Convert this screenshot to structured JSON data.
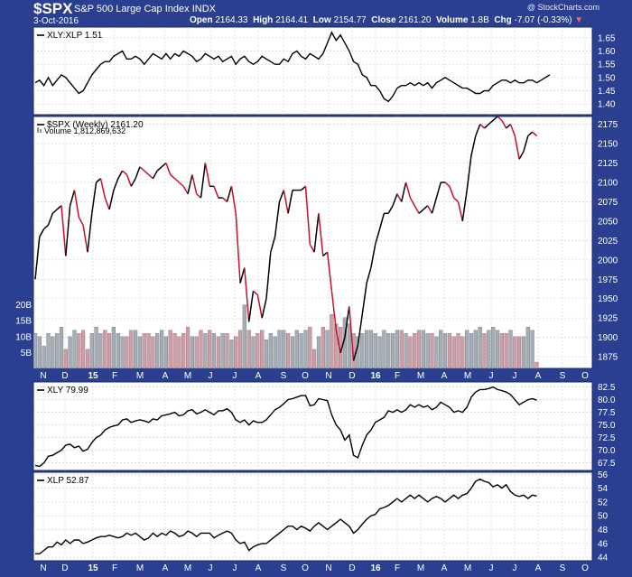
{
  "header": {
    "symbol": "$SPX",
    "name": "S&P 500 Large Cap Index",
    "exchange": "INDX",
    "date": "3-Oct-2016",
    "open_label": "Open",
    "open": "2164.33",
    "high_label": "High",
    "high": "2164.41",
    "low_label": "Low",
    "low": "2154.77",
    "close_label": "Close",
    "close": "2161.20",
    "volume_label": "Volume",
    "volume": "1.8B",
    "chg_label": "Chg",
    "chg": "-7.07 (-0.33%)",
    "watermark": "@ StockCharts.com"
  },
  "colors": {
    "up": "#000000",
    "down": "#c8102e",
    "frame": "#2a3f8f",
    "volume": "#9aa3ad"
  },
  "x_axis_labels": [
    "N",
    "D",
    "15",
    "F",
    "M",
    "A",
    "M",
    "J",
    "J",
    "A",
    "S",
    "O",
    "N",
    "D",
    "16",
    "F",
    "M",
    "A",
    "M",
    "J",
    "J",
    "A",
    "S",
    "O"
  ],
  "chart_data": [
    {
      "type": "line",
      "title": "XLY:XLP 1.51",
      "ylim": [
        1.36,
        1.69
      ],
      "yticks": [
        "1.40",
        "1.45",
        "1.50",
        "1.55",
        "1.60",
        "1.65"
      ],
      "values": [
        1.48,
        1.49,
        1.47,
        1.5,
        1.47,
        1.49,
        1.51,
        1.5,
        1.48,
        1.46,
        1.44,
        1.45,
        1.48,
        1.51,
        1.53,
        1.55,
        1.56,
        1.56,
        1.58,
        1.59,
        1.6,
        1.57,
        1.57,
        1.58,
        1.57,
        1.55,
        1.57,
        1.59,
        1.58,
        1.57,
        1.59,
        1.57,
        1.59,
        1.58,
        1.6,
        1.59,
        1.58,
        1.56,
        1.57,
        1.59,
        1.58,
        1.57,
        1.58,
        1.56,
        1.57,
        1.58,
        1.55,
        1.57,
        1.58,
        1.56,
        1.55,
        1.56,
        1.58,
        1.57,
        1.56,
        1.55,
        1.55,
        1.57,
        1.56,
        1.59,
        1.6,
        1.58,
        1.57,
        1.59,
        1.58,
        1.57,
        1.59,
        1.63,
        1.67,
        1.64,
        1.66,
        1.63,
        1.6,
        1.56,
        1.55,
        1.51,
        1.5,
        1.47,
        1.47,
        1.45,
        1.42,
        1.41,
        1.43,
        1.46,
        1.47,
        1.47,
        1.48,
        1.47,
        1.48,
        1.47,
        1.48,
        1.46,
        1.48,
        1.49,
        1.5,
        1.49,
        1.48,
        1.47,
        1.46,
        1.46,
        1.45,
        1.44,
        1.44,
        1.45,
        1.45,
        1.47,
        1.48,
        1.49,
        1.49,
        1.48,
        1.49,
        1.48,
        1.48,
        1.49,
        1.49,
        1.48,
        1.49,
        1.5,
        1.51
      ]
    },
    {
      "type": "line",
      "title": "$SPX (Weekly) 2161.20",
      "volume_label": "Volume 1,812,869,632",
      "ylim": [
        1860,
        2185
      ],
      "yticks": [
        "1875",
        "1900",
        "1925",
        "1950",
        "1975",
        "2000",
        "2025",
        "2050",
        "2075",
        "2100",
        "2125",
        "2150",
        "2175"
      ],
      "volume_ticks": [
        "5B",
        "10B",
        "15B",
        "20B"
      ],
      "volume_max": 25,
      "values": [
        1975,
        2030,
        2040,
        2045,
        2060,
        2065,
        2070,
        2005,
        2070,
        2090,
        2055,
        2045,
        2010,
        2060,
        2100,
        2105,
        2080,
        2065,
        2090,
        2105,
        2115,
        2110,
        2095,
        2105,
        2120,
        2115,
        2110,
        2105,
        2115,
        2120,
        2125,
        2110,
        2105,
        2100,
        2095,
        2085,
        2110,
        2085,
        2080,
        2125,
        2095,
        2095,
        2080,
        2080,
        2075,
        2095,
        2060,
        1970,
        1990,
        1920,
        1960,
        1955,
        1925,
        1950,
        2010,
        2030,
        2075,
        2090,
        2060,
        2090,
        2090,
        2090,
        2095,
        2020,
        2010,
        2060,
        2005,
        2010,
        1960,
        1910,
        1880,
        1900,
        1940,
        1870,
        1890,
        1930,
        1970,
        1990,
        2020,
        2040,
        2060,
        2060,
        2070,
        2085,
        2075,
        2100,
        2080,
        2070,
        2060,
        2065,
        2070,
        2060,
        2080,
        2100,
        2100,
        2095,
        2080,
        2075,
        2050,
        2090,
        2135,
        2160,
        2175,
        2170,
        2175,
        2180,
        2185,
        2180,
        2170,
        2175,
        2160,
        2130,
        2140,
        2160,
        2165,
        2160
      ],
      "volume": [
        11,
        10,
        7,
        11,
        10,
        11,
        13,
        6,
        10,
        12,
        11,
        12,
        6,
        11,
        13,
        11,
        12,
        11,
        13,
        11,
        10,
        10,
        12,
        12,
        10,
        11,
        11,
        10,
        11,
        12,
        10,
        12,
        11,
        10,
        11,
        13,
        10,
        10,
        12,
        11,
        12,
        11,
        10,
        11,
        11,
        9,
        10,
        12,
        20,
        12,
        10,
        11,
        12,
        9,
        11,
        10,
        12,
        12,
        11,
        10,
        12,
        11,
        12,
        13,
        6,
        10,
        13,
        12,
        17,
        14,
        13,
        16,
        14,
        11,
        10,
        11,
        12,
        12,
        11,
        10,
        12,
        11,
        11,
        12,
        12,
        11,
        10,
        11,
        12,
        12,
        11,
        11,
        10,
        12,
        11,
        11,
        10,
        11,
        10,
        12,
        11,
        12,
        13,
        11,
        12,
        13,
        12,
        11,
        11,
        12,
        10,
        10,
        10,
        13,
        12,
        2
      ]
    },
    {
      "type": "line",
      "title": "XLY 79.99",
      "ylim": [
        66.0,
        83.5
      ],
      "yticks": [
        "67.5",
        "70.0",
        "72.5",
        "75.0",
        "77.5",
        "80.0",
        "82.5"
      ],
      "values": [
        67.0,
        66.8,
        67.5,
        68.8,
        69.0,
        69.5,
        70.0,
        71.0,
        71.2,
        70.5,
        70.8,
        69.8,
        70.2,
        71.5,
        72.5,
        73.0,
        74.0,
        74.5,
        74.8,
        75.0,
        76.0,
        76.2,
        75.5,
        75.8,
        76.0,
        75.8,
        75.5,
        76.2,
        76.0,
        76.8,
        77.0,
        77.2,
        77.5,
        76.8,
        77.0,
        77.8,
        78.0,
        77.2,
        77.5,
        78.0,
        77.5,
        77.0,
        77.8,
        77.8,
        78.2,
        77.5,
        76.0,
        75.5,
        76.0,
        75.0,
        75.8,
        75.5,
        75.5,
        76.0,
        77.0,
        78.0,
        78.5,
        79.2,
        80.0,
        80.2,
        80.5,
        80.8,
        80.8,
        78.8,
        79.0,
        80.2,
        80.0,
        79.8,
        77.0,
        75.0,
        74.0,
        72.0,
        73.0,
        69.0,
        68.5,
        71.0,
        73.0,
        74.0,
        75.5,
        76.0,
        76.5,
        77.8,
        77.5,
        78.0,
        77.5,
        78.0,
        79.0,
        78.5,
        79.0,
        78.5,
        78.8,
        78.0,
        78.5,
        79.5,
        79.0,
        78.5,
        77.5,
        77.8,
        77.5,
        78.5,
        80.5,
        81.5,
        82.0,
        82.0,
        82.2,
        82.5,
        82.0,
        81.8,
        81.5,
        81.0,
        80.0,
        79.0,
        79.5,
        80.0,
        80.2,
        79.9
      ]
    },
    {
      "type": "line",
      "title": "XLP 52.87",
      "ylim": [
        43.5,
        56.3
      ],
      "yticks": [
        "44",
        "46",
        "48",
        "50",
        "52",
        "54",
        "56"
      ],
      "values": [
        44.5,
        44.5,
        45.0,
        45.5,
        45.5,
        46.2,
        45.8,
        46.5,
        46.0,
        46.5,
        46.5,
        46.0,
        46.2,
        46.5,
        46.8,
        47.0,
        47.0,
        47.2,
        47.0,
        46.8,
        47.0,
        47.5,
        47.2,
        47.5,
        47.0,
        46.5,
        46.8,
        47.5,
        47.0,
        47.5,
        47.2,
        47.8,
        47.5,
        47.0,
        47.2,
        47.8,
        47.5,
        47.0,
        47.5,
        47.5,
        47.5,
        46.8,
        47.2,
        47.5,
        47.8,
        47.5,
        46.5,
        46.0,
        46.2,
        45.0,
        45.5,
        45.8,
        46.0,
        46.0,
        46.5,
        47.0,
        47.5,
        48.0,
        48.5,
        48.5,
        48.0,
        48.5,
        48.2,
        47.8,
        48.5,
        49.0,
        48.5,
        48.0,
        48.5,
        49.0,
        49.5,
        49.0,
        48.5,
        47.5,
        48.0,
        48.8,
        49.5,
        50.0,
        50.2,
        51.0,
        51.2,
        51.5,
        52.0,
        52.5,
        52.0,
        52.5,
        53.0,
        52.5,
        53.0,
        52.5,
        52.0,
        52.5,
        52.8,
        52.5,
        52.0,
        52.5,
        53.0,
        52.5,
        53.0,
        53.2,
        54.0,
        55.0,
        55.3,
        55.0,
        54.8,
        54.2,
        54.5,
        54.0,
        54.5,
        53.5,
        53.0,
        52.8,
        53.0,
        52.5,
        53.0,
        52.87
      ]
    }
  ]
}
